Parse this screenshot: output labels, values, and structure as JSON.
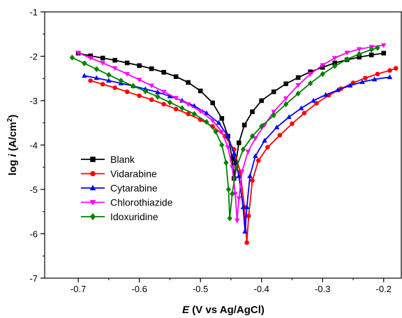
{
  "chart_data": {
    "type": "line",
    "title": "",
    "xlabel_italic": "E",
    "xlabel_rest": " (V vs Ag/AgCl)",
    "ylabel_main": "log ",
    "ylabel_italic": "i",
    "ylabel_unit": " (A/cm",
    "ylabel_sup": "2",
    "ylabel_close": ")",
    "xlim": [
      -0.755,
      -0.17
    ],
    "ylim": [
      -7,
      -1
    ],
    "xticks": [
      -0.7,
      -0.6,
      -0.5,
      -0.4,
      -0.3,
      -0.2
    ],
    "xtick_labels": [
      "-0.7",
      "-0.6",
      "-0.5",
      "-0.4",
      "-0.3",
      "-0.2"
    ],
    "yticks": [
      -7,
      -6,
      -5,
      -4,
      -3,
      -2,
      -1
    ],
    "ytick_labels": [
      "-7",
      "-6",
      "-5",
      "-4",
      "-3",
      "-2",
      "-1"
    ],
    "grid": false,
    "legend_position": "lower-left",
    "series": [
      {
        "name": "Blank",
        "color": "#000000",
        "marker": "square",
        "points": [
          [
            -0.7,
            -1.93
          ],
          [
            -0.68,
            -1.99
          ],
          [
            -0.66,
            -2.04
          ],
          [
            -0.64,
            -2.09
          ],
          [
            -0.62,
            -2.15
          ],
          [
            -0.6,
            -2.21
          ],
          [
            -0.58,
            -2.28
          ],
          [
            -0.56,
            -2.36
          ],
          [
            -0.54,
            -2.46
          ],
          [
            -0.52,
            -2.59
          ],
          [
            -0.5,
            -2.78
          ],
          [
            -0.48,
            -3.05
          ],
          [
            -0.465,
            -3.4
          ],
          [
            -0.455,
            -3.8
          ],
          [
            -0.448,
            -4.3
          ],
          [
            -0.445,
            -4.75
          ],
          [
            -0.442,
            -4.4
          ],
          [
            -0.437,
            -3.95
          ],
          [
            -0.428,
            -3.55
          ],
          [
            -0.415,
            -3.25
          ],
          [
            -0.4,
            -3.0
          ],
          [
            -0.38,
            -2.8
          ],
          [
            -0.36,
            -2.62
          ],
          [
            -0.34,
            -2.48
          ],
          [
            -0.32,
            -2.35
          ],
          [
            -0.3,
            -2.25
          ],
          [
            -0.28,
            -2.15
          ],
          [
            -0.26,
            -2.08
          ],
          [
            -0.24,
            -2.02
          ],
          [
            -0.22,
            -1.97
          ],
          [
            -0.2,
            -1.93
          ]
        ]
      },
      {
        "name": "Vidarabine",
        "color": "#ff0000",
        "marker": "circle",
        "points": [
          [
            -0.68,
            -2.55
          ],
          [
            -0.66,
            -2.63
          ],
          [
            -0.64,
            -2.71
          ],
          [
            -0.62,
            -2.8
          ],
          [
            -0.6,
            -2.89
          ],
          [
            -0.58,
            -2.98
          ],
          [
            -0.56,
            -3.08
          ],
          [
            -0.54,
            -3.19
          ],
          [
            -0.52,
            -3.3
          ],
          [
            -0.5,
            -3.43
          ],
          [
            -0.48,
            -3.58
          ],
          [
            -0.46,
            -3.8
          ],
          [
            -0.445,
            -4.1
          ],
          [
            -0.435,
            -4.6
          ],
          [
            -0.428,
            -5.4
          ],
          [
            -0.424,
            -6.2
          ],
          [
            -0.421,
            -5.6
          ],
          [
            -0.415,
            -4.8
          ],
          [
            -0.405,
            -4.35
          ],
          [
            -0.39,
            -4.05
          ],
          [
            -0.37,
            -3.78
          ],
          [
            -0.35,
            -3.52
          ],
          [
            -0.33,
            -3.28
          ],
          [
            -0.31,
            -3.06
          ],
          [
            -0.29,
            -2.88
          ],
          [
            -0.27,
            -2.73
          ],
          [
            -0.25,
            -2.6
          ],
          [
            -0.23,
            -2.49
          ],
          [
            -0.21,
            -2.4
          ],
          [
            -0.19,
            -2.32
          ],
          [
            -0.18,
            -2.27
          ]
        ]
      },
      {
        "name": "Cytarabine",
        "color": "#0000ff",
        "marker": "triangle-up",
        "points": [
          [
            -0.69,
            -2.44
          ],
          [
            -0.67,
            -2.49
          ],
          [
            -0.65,
            -2.55
          ],
          [
            -0.63,
            -2.61
          ],
          [
            -0.61,
            -2.67
          ],
          [
            -0.59,
            -2.74
          ],
          [
            -0.57,
            -2.81
          ],
          [
            -0.55,
            -2.9
          ],
          [
            -0.53,
            -3.0
          ],
          [
            -0.51,
            -3.12
          ],
          [
            -0.49,
            -3.28
          ],
          [
            -0.47,
            -3.5
          ],
          [
            -0.455,
            -3.8
          ],
          [
            -0.445,
            -4.2
          ],
          [
            -0.437,
            -4.7
          ],
          [
            -0.43,
            -5.4
          ],
          [
            -0.427,
            -5.95
          ],
          [
            -0.424,
            -5.4
          ],
          [
            -0.419,
            -4.7
          ],
          [
            -0.41,
            -4.25
          ],
          [
            -0.395,
            -3.9
          ],
          [
            -0.375,
            -3.6
          ],
          [
            -0.355,
            -3.37
          ],
          [
            -0.335,
            -3.17
          ],
          [
            -0.315,
            -3.0
          ],
          [
            -0.295,
            -2.87
          ],
          [
            -0.275,
            -2.76
          ],
          [
            -0.255,
            -2.66
          ],
          [
            -0.235,
            -2.58
          ],
          [
            -0.215,
            -2.52
          ],
          [
            -0.19,
            -2.47
          ]
        ]
      },
      {
        "name": "Chlorothiazide",
        "color": "#ff00ff",
        "marker": "triangle-down",
        "points": [
          [
            -0.7,
            -1.92
          ],
          [
            -0.68,
            -2.04
          ],
          [
            -0.66,
            -2.15
          ],
          [
            -0.64,
            -2.27
          ],
          [
            -0.62,
            -2.4
          ],
          [
            -0.6,
            -2.53
          ],
          [
            -0.58,
            -2.66
          ],
          [
            -0.56,
            -2.8
          ],
          [
            -0.54,
            -2.94
          ],
          [
            -0.52,
            -3.08
          ],
          [
            -0.5,
            -3.24
          ],
          [
            -0.48,
            -3.45
          ],
          [
            -0.465,
            -3.7
          ],
          [
            -0.455,
            -4.05
          ],
          [
            -0.448,
            -4.5
          ],
          [
            -0.443,
            -5.1
          ],
          [
            -0.44,
            -5.7
          ],
          [
            -0.437,
            -5.2
          ],
          [
            -0.432,
            -4.6
          ],
          [
            -0.422,
            -4.15
          ],
          [
            -0.41,
            -3.85
          ],
          [
            -0.395,
            -3.55
          ],
          [
            -0.38,
            -3.25
          ],
          [
            -0.36,
            -2.95
          ],
          [
            -0.34,
            -2.65
          ],
          [
            -0.32,
            -2.4
          ],
          [
            -0.3,
            -2.2
          ],
          [
            -0.28,
            -2.04
          ],
          [
            -0.26,
            -1.92
          ],
          [
            -0.24,
            -1.84
          ],
          [
            -0.22,
            -1.79
          ],
          [
            -0.2,
            -1.75
          ]
        ]
      },
      {
        "name": "Idoxuridine",
        "color": "#008000",
        "marker": "diamond",
        "points": [
          [
            -0.71,
            -2.03
          ],
          [
            -0.69,
            -2.16
          ],
          [
            -0.67,
            -2.29
          ],
          [
            -0.65,
            -2.42
          ],
          [
            -0.63,
            -2.55
          ],
          [
            -0.61,
            -2.67
          ],
          [
            -0.59,
            -2.79
          ],
          [
            -0.57,
            -2.91
          ],
          [
            -0.55,
            -3.04
          ],
          [
            -0.53,
            -3.17
          ],
          [
            -0.51,
            -3.3
          ],
          [
            -0.49,
            -3.48
          ],
          [
            -0.475,
            -3.7
          ],
          [
            -0.465,
            -4.0
          ],
          [
            -0.458,
            -4.4
          ],
          [
            -0.454,
            -5.0
          ],
          [
            -0.452,
            -5.65
          ],
          [
            -0.448,
            -5.1
          ],
          [
            -0.441,
            -4.5
          ],
          [
            -0.43,
            -4.1
          ],
          [
            -0.415,
            -3.8
          ],
          [
            -0.4,
            -3.58
          ],
          [
            -0.38,
            -3.33
          ],
          [
            -0.36,
            -3.08
          ],
          [
            -0.34,
            -2.84
          ],
          [
            -0.32,
            -2.61
          ],
          [
            -0.3,
            -2.4
          ],
          [
            -0.28,
            -2.22
          ],
          [
            -0.26,
            -2.07
          ],
          [
            -0.24,
            -1.95
          ],
          [
            -0.22,
            -1.85
          ],
          [
            -0.21,
            -1.81
          ]
        ]
      }
    ]
  }
}
